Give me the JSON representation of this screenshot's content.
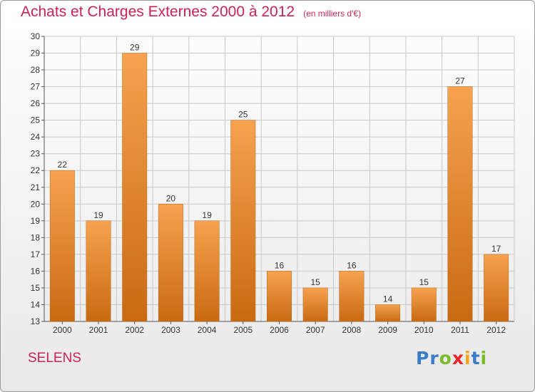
{
  "title": "Achats et Charges Externes 2000 à 2012",
  "subtitle": "(en milliers d'€)",
  "place": "SELENS",
  "logo": {
    "text": "Proxiti",
    "letters": [
      {
        "ch": "P",
        "color": "#3a7cc8"
      },
      {
        "ch": "r",
        "color": "#3a7cc8"
      },
      {
        "ch": "o",
        "color": "#7bbb2a"
      },
      {
        "ch": "x",
        "color": "#e8262a"
      },
      {
        "ch": "i",
        "color": "#f2a71b"
      },
      {
        "ch": "t",
        "color": "#3a7cc8"
      },
      {
        "ch": "i",
        "color": "#7bbb2a"
      }
    ]
  },
  "colors": {
    "bar_top": "#f6a24f",
    "bar_bottom": "#c96a12",
    "title": "#cc2255",
    "grid": "#c8c8c8"
  },
  "chart_data": {
    "type": "bar",
    "categories": [
      "2000",
      "2001",
      "2002",
      "2003",
      "2004",
      "2005",
      "2006",
      "2007",
      "2008",
      "2009",
      "2010",
      "2011",
      "2012"
    ],
    "values": [
      22,
      19,
      29,
      20,
      19,
      25,
      16,
      15,
      16,
      14,
      15,
      27,
      17
    ],
    "ylim": [
      13,
      30
    ],
    "yticks": [
      13,
      14,
      15,
      16,
      17,
      18,
      19,
      20,
      21,
      22,
      23,
      24,
      25,
      26,
      27,
      28,
      29,
      30
    ],
    "grid": true,
    "xlabel": "",
    "ylabel": ""
  }
}
